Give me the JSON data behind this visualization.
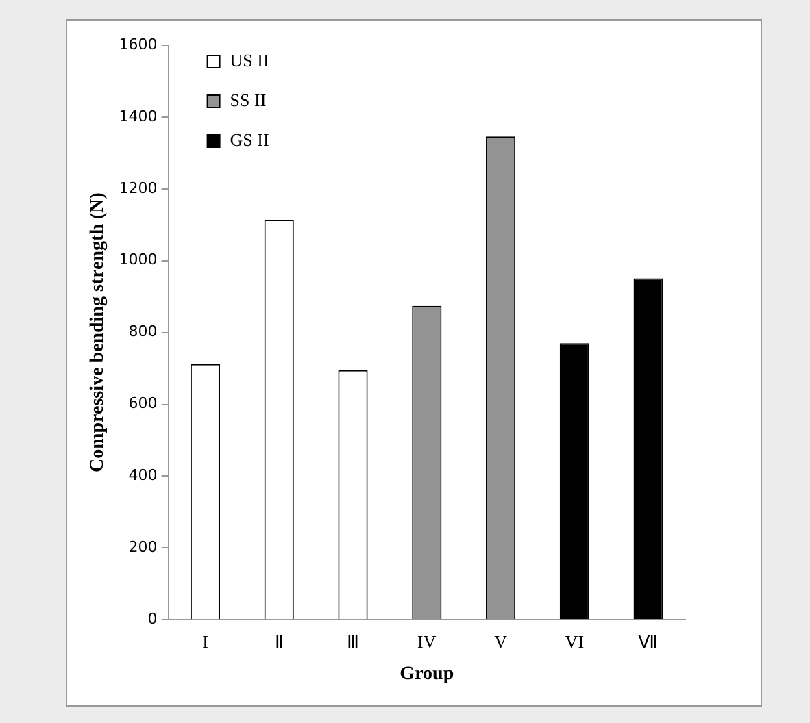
{
  "chart_data": {
    "type": "bar",
    "xlabel": "Group",
    "ylabel": "Compressive bending strength (N)",
    "categories": [
      "I",
      "Ⅱ",
      "Ⅲ",
      "IV",
      "V",
      "VI",
      "Ⅶ"
    ],
    "series": [
      {
        "name": "US II",
        "color": "#ffffff",
        "values": [
          712,
          1114,
          695,
          null,
          null,
          null,
          null
        ]
      },
      {
        "name": "SS II",
        "color": "#939393",
        "values": [
          null,
          null,
          null,
          874,
          1346,
          null,
          null
        ]
      },
      {
        "name": "GS II",
        "color": "#000000",
        "values": [
          null,
          null,
          null,
          null,
          null,
          770,
          951
        ]
      }
    ],
    "ylim": [
      0,
      1600
    ],
    "yticks": [
      0,
      200,
      400,
      600,
      800,
      1000,
      1200,
      1400,
      1600
    ],
    "grid": false,
    "legend": "top left"
  }
}
